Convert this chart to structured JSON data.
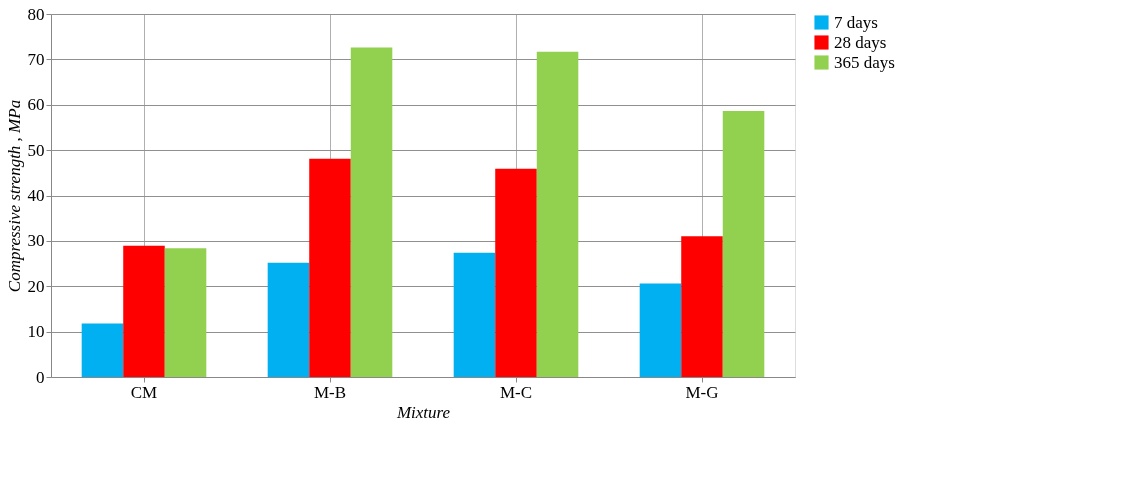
{
  "chart_data": {
    "type": "bar",
    "xlabel": "Mixture",
    "ylabel": "Compressive strength , MPa",
    "categories": [
      "CM",
      "M-B",
      "M-C",
      "M-G"
    ],
    "series": [
      {
        "name": "7 days",
        "color": "#00b0f0",
        "values": [
          11.8,
          25.2,
          27.4,
          20.6
        ]
      },
      {
        "name": "28 days",
        "color": "#ff0000",
        "values": [
          28.9,
          48.1,
          45.9,
          31.0
        ]
      },
      {
        "name": "365 days",
        "color": "#92d050",
        "values": [
          28.4,
          72.6,
          71.7,
          58.6
        ]
      }
    ],
    "ylim": [
      0,
      80
    ],
    "yticks": [
      0,
      10,
      20,
      30,
      40,
      50,
      60,
      70,
      80
    ],
    "grid": true,
    "legend": "right"
  }
}
